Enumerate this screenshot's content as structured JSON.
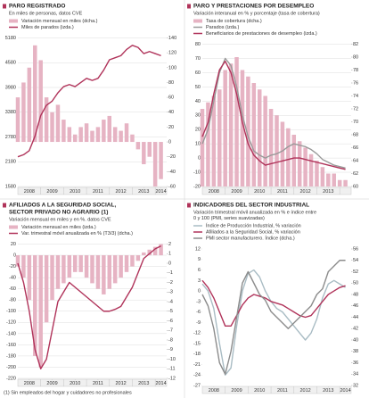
{
  "chart_data": [
    {
      "type": "combo",
      "title": [
        "PARO REGISTRADO"
      ],
      "subtitle": [
        "En miles de personas, datos CVE"
      ],
      "x": [
        2008,
        2008.25,
        2008.5,
        2008.75,
        2009,
        2009.25,
        2009.5,
        2009.75,
        2010,
        2010.25,
        2010.5,
        2010.75,
        2011,
        2011.25,
        2011.5,
        2011.75,
        2012,
        2012.25,
        2012.5,
        2012.75,
        2013,
        2013.25,
        2013.5,
        2013.75,
        2014,
        2014.25
      ],
      "xlim": [
        2008,
        2014.5
      ],
      "xticks": [
        {
          "value": 2008.5,
          "label": "2008"
        },
        {
          "value": 2009.5,
          "label": "2009"
        },
        {
          "value": 2010.5,
          "label": "2010"
        },
        {
          "value": 2011.5,
          "label": "2011"
        },
        {
          "value": 2012.5,
          "label": "2012"
        },
        {
          "value": 2013.5,
          "label": "2013"
        },
        {
          "value": 2014.25,
          "label": "2014"
        }
      ],
      "ylim": [
        1580,
        5180
      ],
      "yticks": [
        1580,
        2180,
        2780,
        3380,
        3980,
        4580,
        5180
      ],
      "y2lim": [
        -60,
        140
      ],
      "y2ticks": [
        -60,
        -40,
        -20,
        0,
        20,
        40,
        60,
        80,
        100,
        120,
        140
      ],
      "grid": true,
      "series": [
        {
          "name": "Variación mensual en miles (dcha.)",
          "kind": "bar",
          "axis": "y2",
          "color": "#e6b3c3",
          "values": [
            60,
            80,
            100,
            130,
            110,
            60,
            40,
            50,
            30,
            20,
            10,
            20,
            25,
            15,
            20,
            30,
            35,
            20,
            15,
            25,
            10,
            -10,
            -30,
            -20,
            -60,
            -50
          ]
        },
        {
          "name": "Miles de parados (izda.)",
          "kind": "line",
          "color": "#b0335a",
          "values": [
            2300,
            2350,
            2450,
            2800,
            3300,
            3550,
            3650,
            3850,
            4000,
            4050,
            4000,
            4100,
            4200,
            4150,
            4200,
            4400,
            4650,
            4700,
            4750,
            4900,
            5000,
            4950,
            4800,
            4850,
            4800,
            4750
          ]
        }
      ]
    },
    {
      "type": "combo",
      "title": [
        "PARO Y PRESTACIONES POR DESEMPLEO"
      ],
      "subtitle": [
        "Variación interanual en % y porcentaje (tasa de cobertura)"
      ],
      "x": [
        2008,
        2008.25,
        2008.5,
        2008.75,
        2009,
        2009.25,
        2009.5,
        2009.75,
        2010,
        2010.25,
        2010.5,
        2010.75,
        2011,
        2011.25,
        2011.5,
        2011.75,
        2012,
        2012.25,
        2012.5,
        2012.75,
        2013,
        2013.25,
        2013.5,
        2013.75,
        2014,
        2014.25
      ],
      "xlim": [
        2008,
        2014.5
      ],
      "xticks": [
        {
          "value": 2008.5,
          "label": "2008"
        },
        {
          "value": 2009.5,
          "label": "2009"
        },
        {
          "value": 2010.5,
          "label": "2010"
        },
        {
          "value": 2011.5,
          "label": "2011"
        },
        {
          "value": 2012.5,
          "label": "2012"
        },
        {
          "value": 2013.5,
          "label": "2013"
        }
      ],
      "ylim": [
        -20,
        80
      ],
      "yticks": [
        -20,
        -10,
        0,
        10,
        20,
        30,
        40,
        50,
        60,
        70,
        80
      ],
      "y2lim": [
        60,
        82
      ],
      "y2ticks": [
        60,
        62,
        64,
        66,
        68,
        70,
        72,
        74,
        76,
        78,
        80,
        82
      ],
      "grid": true,
      "series": [
        {
          "name": "Tasa de cobertura (dcha.)",
          "kind": "bar",
          "axis": "y2",
          "color": "#e6b3c3",
          "values": [
            72,
            73,
            74,
            75,
            78,
            79,
            80,
            78,
            77,
            76,
            75,
            74,
            72,
            71,
            70,
            69,
            68,
            67,
            66,
            65,
            64,
            63,
            62,
            62,
            61,
            61
          ]
        },
        {
          "name": "Parados (izda.)",
          "kind": "line",
          "color": "#999999",
          "values": [
            10,
            20,
            40,
            60,
            70,
            65,
            50,
            30,
            15,
            5,
            2,
            0,
            2,
            3,
            5,
            8,
            10,
            9,
            8,
            6,
            3,
            -1,
            -3,
            -5,
            -6,
            -7
          ]
        },
        {
          "name": "Beneficiarios de prestaciones de desempleo (izda.)",
          "kind": "line",
          "color": "#b0335a",
          "values": [
            15,
            25,
            45,
            62,
            68,
            60,
            45,
            25,
            10,
            2,
            -2,
            -5,
            -4,
            -3,
            -2,
            -1,
            0,
            0,
            -1,
            -2,
            -3,
            -4,
            -5,
            -6,
            -7,
            -8
          ]
        }
      ]
    },
    {
      "type": "combo",
      "title": [
        "AFILIADOS A LA SEGURIDAD SOCIAL,",
        "SECTOR PRIVADO NO AGRARIO (1)"
      ],
      "subtitle": [
        "Variación mensual en miles y en %. datos CVE"
      ],
      "footnote": "(1) Sin empleados del hogar y cuidadores no profesionales",
      "x": [
        2008,
        2008.25,
        2008.5,
        2008.75,
        2009,
        2009.25,
        2009.5,
        2009.75,
        2010,
        2010.25,
        2010.5,
        2010.75,
        2011,
        2011.25,
        2011.5,
        2011.75,
        2012,
        2012.25,
        2012.5,
        2012.75,
        2013,
        2013.25,
        2013.5,
        2013.75,
        2014,
        2014.25
      ],
      "xlim": [
        2008,
        2014.5
      ],
      "xticks": [
        {
          "value": 2008.5,
          "label": "2008"
        },
        {
          "value": 2009.5,
          "label": "2009"
        },
        {
          "value": 2010.5,
          "label": "2010"
        },
        {
          "value": 2011.5,
          "label": "2011"
        },
        {
          "value": 2012.5,
          "label": "2012"
        },
        {
          "value": 2013.5,
          "label": "2013"
        },
        {
          "value": 2014.25,
          "label": "2014"
        }
      ],
      "ylim": [
        -220,
        20
      ],
      "yticks": [
        -220,
        -200,
        -180,
        -160,
        -140,
        -120,
        -100,
        -80,
        -60,
        -40,
        -20,
        0,
        20
      ],
      "y2lim": [
        -12,
        2
      ],
      "y2ticks": [
        -12,
        -11,
        -10,
        -9,
        -8,
        -7,
        -6,
        -5,
        -4,
        -3,
        -2,
        -1,
        0,
        1,
        2
      ],
      "grid": true,
      "series": [
        {
          "name": "Variación mensual en miles (izda.)",
          "kind": "bar",
          "color": "#e6b3c3",
          "values": [
            -20,
            -40,
            -80,
            -180,
            -200,
            -120,
            -80,
            -60,
            -50,
            -40,
            -30,
            -30,
            -40,
            -50,
            -60,
            -70,
            -60,
            -50,
            -40,
            -30,
            -20,
            -10,
            5,
            10,
            15,
            20
          ]
        },
        {
          "name": "Var. trimestral móvil anualizada en % (T3/3) (dcha.)",
          "kind": "line",
          "axis": "y2",
          "color": "#b0335a",
          "values": [
            0,
            -2,
            -5,
            -9,
            -11,
            -10,
            -7,
            -4,
            -3,
            -2,
            -2.5,
            -3,
            -3.5,
            -4,
            -4.5,
            -5,
            -5,
            -4.8,
            -4.5,
            -3.5,
            -2.5,
            -1,
            0.5,
            1,
            1.5,
            1.8
          ]
        }
      ]
    },
    {
      "type": "line",
      "title": [
        "INDICADORES DEL SECTOR INDUSTRIAL"
      ],
      "subtitle": [
        "Variación trimestral móvil anualizada en % e índice entre",
        "0 y 100 (PMI, series suavizadas)"
      ],
      "x": [
        2008,
        2008.25,
        2008.5,
        2008.75,
        2009,
        2009.25,
        2009.5,
        2009.75,
        2010,
        2010.25,
        2010.5,
        2010.75,
        2011,
        2011.25,
        2011.5,
        2011.75,
        2012,
        2012.25,
        2012.5,
        2012.75,
        2013,
        2013.25,
        2013.5,
        2013.75,
        2014,
        2014.25
      ],
      "xlim": [
        2008,
        2014.5
      ],
      "xticks": [
        {
          "value": 2008.5,
          "label": "2008"
        },
        {
          "value": 2009.5,
          "label": "2009"
        },
        {
          "value": 2010.5,
          "label": "2010"
        },
        {
          "value": 2011.5,
          "label": "2011"
        },
        {
          "value": 2012.5,
          "label": "2012"
        },
        {
          "value": 2013.5,
          "label": "2013"
        },
        {
          "value": 2014.25,
          "label": "2014"
        }
      ],
      "ylim": [
        -27,
        12
      ],
      "yticks": [
        -27,
        -24,
        -21,
        -18,
        -15,
        -12,
        -9,
        -6,
        -3,
        0,
        3,
        6,
        9,
        12
      ],
      "y2lim": [
        32,
        56
      ],
      "y2ticks": [
        32,
        34,
        36,
        38,
        40,
        42,
        44,
        46,
        48,
        50,
        52,
        54,
        56
      ],
      "grid": false,
      "series": [
        {
          "name": "Índice de Producción Industrial, % variación",
          "kind": "line",
          "color": "#a9bcc4",
          "values": [
            2,
            0,
            -5,
            -15,
            -24,
            -22,
            -10,
            0,
            5,
            6,
            4,
            0,
            -3,
            -5,
            -6,
            -8,
            -10,
            -12,
            -14,
            -12,
            -8,
            -2,
            2,
            3,
            2,
            1
          ]
        },
        {
          "name": "Afiliados a la Seguridad Social, % variación",
          "kind": "line",
          "color": "#b0335a",
          "values": [
            3,
            1,
            -2,
            -6,
            -10,
            -10,
            -7,
            -4,
            -2,
            -1,
            -1.5,
            -2,
            -3,
            -3.5,
            -4,
            -5,
            -6,
            -7,
            -7.5,
            -7,
            -5,
            -3,
            -1,
            0,
            1,
            1.5
          ]
        },
        {
          "name": "PMI sector manufacturero. Índice (dcha.)",
          "kind": "line",
          "axis": "y2",
          "color": "#8c8c8c",
          "values": [
            48,
            46,
            42,
            36,
            34,
            38,
            44,
            50,
            52,
            50,
            48,
            47,
            45,
            44,
            43,
            42,
            43,
            44,
            45,
            46,
            48,
            49,
            52,
            53,
            54,
            54
          ]
        }
      ]
    }
  ]
}
